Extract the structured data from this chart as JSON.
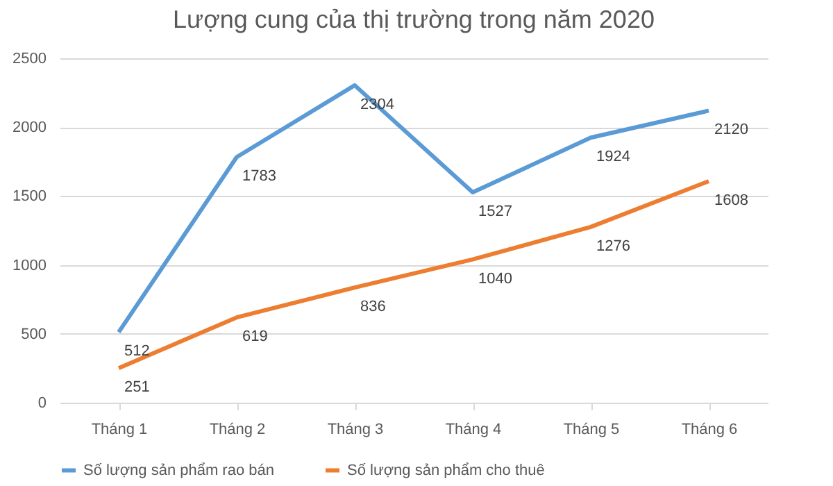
{
  "chart_data": {
    "type": "line",
    "title": "Lượng cung của thị trường trong năm 2020",
    "categories": [
      "Tháng 1",
      "Tháng 2",
      "Tháng 3",
      "Tháng 4",
      "Tháng 5",
      "Tháng 6"
    ],
    "series": [
      {
        "name": "Số lượng sản phẩm rao bán",
        "color": "#5b9bd5",
        "values": [
          512,
          1783,
          2304,
          1527,
          1924,
          2120
        ]
      },
      {
        "name": "Số lượng sản phẩm cho thuê",
        "color": "#ed7d31",
        "values": [
          251,
          619,
          836,
          1040,
          1276,
          1608
        ]
      }
    ],
    "ylim": [
      0,
      2500
    ],
    "yticks": [
      0,
      500,
      1000,
      1500,
      2000,
      2500
    ],
    "grid": "y",
    "legend": "bottom",
    "marker": "none",
    "line_style": "solid",
    "data_labels": true
  }
}
